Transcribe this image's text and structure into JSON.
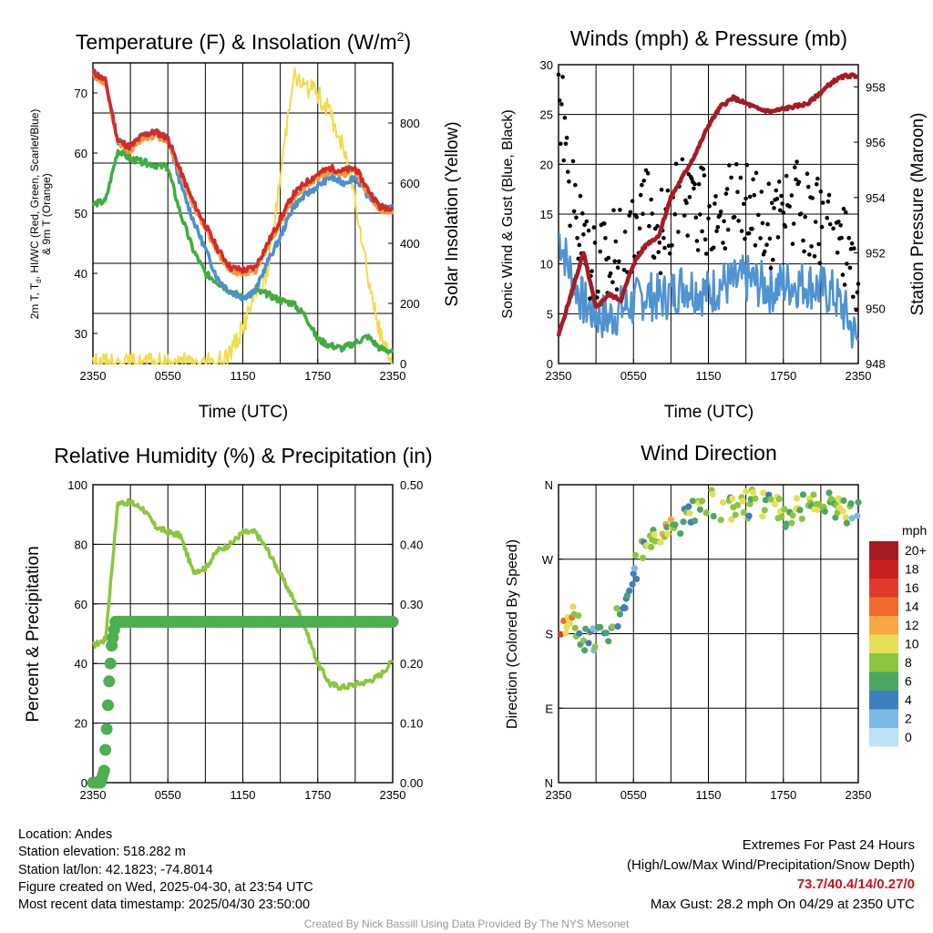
{
  "charts": {
    "temp": {
      "title": "Temperature (F) & Insolation (W/m",
      "title_sup": "2",
      "title_end": ")",
      "xlabel": "Time (UTC)",
      "ylabel_left_lines": [
        "2m T, T",
        "d",
        ", HI/WC (Red, Green, Scarlet/Blue)",
        "& 9m T (Orange)"
      ],
      "ylabel_right": "Solar Insolation (Yellow)",
      "xticks": [
        "2350",
        "0550",
        "1150",
        "1750",
        "2350"
      ],
      "yticks_left": [
        "30",
        "40",
        "50",
        "60",
        "70"
      ],
      "yticks_right": [
        "0",
        "200",
        "400",
        "600",
        "800"
      ]
    },
    "wind": {
      "title": "Winds (mph) & Pressure (mb)",
      "xlabel": "Time (UTC)",
      "ylabel_left": "Sonic Wind & Gust (Blue, Black)",
      "ylabel_right": "Station Pressure (Maroon)",
      "xticks": [
        "2350",
        "0550",
        "1150",
        "1750",
        "2350"
      ],
      "yticks_left": [
        "0",
        "5",
        "10",
        "15",
        "20",
        "25",
        "30"
      ],
      "yticks_right": [
        "948",
        "950",
        "952",
        "954",
        "956",
        "958"
      ]
    },
    "rh": {
      "title": "Relative Humidity (%) & Precipitation (in)",
      "ylabel_left": "Percent & Precipitation",
      "xticks": [
        "2350",
        "0550",
        "1150",
        "1750",
        "2350"
      ],
      "yticks_left": [
        "0",
        "20",
        "40",
        "60",
        "80",
        "100"
      ],
      "yticks_right": [
        "0.00",
        "0.10",
        "0.20",
        "0.30",
        "0.40",
        "0.50"
      ]
    },
    "dir": {
      "title": "Wind Direction",
      "ylabel": "Direction (Colored By Speed)",
      "xticks": [
        "2350",
        "0550",
        "1150",
        "1750",
        "2350"
      ],
      "yticks": [
        "N",
        "E",
        "S",
        "W",
        "N"
      ],
      "colorbar_title": "mph",
      "colorbar_labels": [
        "20+",
        "18",
        "16",
        "14",
        "12",
        "10",
        "8",
        "6",
        "4",
        "2",
        "0"
      ],
      "colorbar_colors": [
        "#a51c24",
        "#c8201f",
        "#e03a2c",
        "#f06a2e",
        "#f9a744",
        "#e6df56",
        "#8cc63f",
        "#4aa864",
        "#3f7fbe",
        "#7cb8e6",
        "#bfe3f6"
      ]
    }
  },
  "chart_data": [
    {
      "type": "line",
      "title": "Temperature (F) & Insolation (W/m2)",
      "xlabel": "Time (UTC)",
      "ylabel": "2m T, Td, HI/WC (Red, Green, Scarlet/Blue) & 9m T (Orange)",
      "y2label": "Solar Insolation (Yellow)",
      "x_hours": [
        0,
        1,
        2,
        3,
        4,
        5,
        6,
        7,
        8,
        9,
        10,
        11,
        12,
        13,
        14,
        15,
        16,
        17,
        18,
        19,
        20,
        21,
        22,
        23,
        24
      ],
      "xlim": [
        0,
        24
      ],
      "ylim": [
        25,
        75
      ],
      "y2lim": [
        0,
        1000
      ],
      "series": [
        {
          "name": "2m T",
          "color": "#d42a2a",
          "axis": "left",
          "values": [
            73.5,
            72,
            62,
            61,
            63,
            63.5,
            62.5,
            57,
            52,
            48,
            44,
            41,
            40.5,
            41,
            45,
            49,
            53,
            55,
            56.5,
            57.5,
            57,
            57.5,
            54,
            51,
            51
          ]
        },
        {
          "name": "9m T",
          "color": "#f39a3c",
          "axis": "left",
          "values": [
            73,
            71.5,
            61.5,
            60.5,
            62.5,
            63,
            62,
            56.5,
            51.5,
            47.5,
            43.5,
            40.5,
            40,
            40.5,
            44.5,
            48.5,
            52.5,
            54.5,
            56,
            57,
            56.5,
            57,
            53.5,
            50.5,
            50.5
          ]
        },
        {
          "name": "HI/WC",
          "color": "#4a90d0",
          "axis": "left",
          "values": [
            73.5,
            72,
            62,
            61,
            63,
            63.5,
            62.5,
            55,
            49,
            44,
            39,
            37,
            36,
            37,
            42,
            46,
            51,
            53,
            54.5,
            56,
            55,
            56,
            53,
            51,
            51
          ]
        },
        {
          "name": "Td",
          "color": "#3fae3f",
          "axis": "left",
          "values": [
            51.5,
            52,
            60.5,
            59,
            58.5,
            58,
            57.5,
            50,
            44,
            40,
            38.5,
            37,
            36,
            37,
            36.5,
            35.5,
            35,
            33,
            29,
            28,
            27.5,
            28.5,
            29.5,
            27.5,
            27
          ]
        },
        {
          "name": "Solar Insolation",
          "color": "#f2dc4a",
          "axis": "right",
          "values": [
            0,
            0,
            0,
            0,
            0,
            0,
            0,
            0,
            0,
            0,
            0,
            40,
            120,
            230,
            300,
            620,
            960,
            920,
            900,
            830,
            720,
            560,
            300,
            90,
            5
          ]
        }
      ]
    },
    {
      "type": "line",
      "title": "Winds (mph) & Pressure (mb)",
      "xlabel": "Time (UTC)",
      "ylabel": "Sonic Wind & Gust (Blue, Black)",
      "y2label": "Station Pressure (Maroon)",
      "x_hours": [
        0,
        1,
        2,
        3,
        4,
        5,
        6,
        7,
        8,
        9,
        10,
        11,
        12,
        13,
        14,
        15,
        16,
        17,
        18,
        19,
        20,
        21,
        22,
        23,
        24
      ],
      "xlim": [
        0,
        24
      ],
      "ylim": [
        0,
        30
      ],
      "y2lim": [
        948,
        958.8
      ],
      "series": [
        {
          "name": "Sonic Wind",
          "color": "#4e93d2",
          "axis": "left",
          "values": [
            13,
            9,
            6,
            5,
            4.5,
            5.5,
            6,
            7,
            6.5,
            7,
            8,
            7.5,
            7,
            8,
            8,
            8.5,
            8,
            7.5,
            8,
            8,
            8,
            7.5,
            7,
            5,
            2
          ]
        },
        {
          "name": "Gust",
          "color": "#000000",
          "axis": "left",
          "values": [
            28.2,
            17,
            11,
            10,
            11,
            12,
            13,
            15,
            13,
            15,
            17,
            16,
            15,
            16,
            16,
            15.5,
            15,
            14,
            15,
            16,
            14.5,
            14,
            14,
            11,
            7
          ]
        },
        {
          "name": "Station Pressure",
          "color": "#a51c24",
          "axis": "right",
          "values": [
            949,
            950.5,
            952,
            950,
            950.5,
            950.3,
            951.6,
            952.3,
            952.6,
            954,
            954.8,
            955.6,
            956.6,
            957.3,
            957.6,
            957.4,
            957.2,
            957.1,
            957.2,
            957.3,
            957.4,
            957.8,
            958.2,
            958.4,
            958.4
          ]
        }
      ]
    },
    {
      "type": "line",
      "title": "Relative Humidity (%) & Precipitation (in)",
      "ylabel": "Percent & Precipitation",
      "x_hours": [
        0,
        1,
        2,
        3,
        4,
        5,
        6,
        7,
        8,
        9,
        10,
        11,
        12,
        13,
        14,
        15,
        16,
        17,
        18,
        19,
        20,
        21,
        22,
        23,
        24
      ],
      "xlim": [
        0,
        24
      ],
      "ylim": [
        0,
        100
      ],
      "y2lim": [
        0,
        0.5
      ],
      "series": [
        {
          "name": "Relative Humidity",
          "color": "#8cc63f",
          "axis": "left",
          "values": [
            46,
            48,
            94,
            94,
            92,
            86,
            84,
            83,
            71,
            72,
            78,
            80,
            84,
            84,
            78,
            70,
            62,
            52,
            40,
            33,
            32,
            33,
            34,
            36,
            41
          ]
        },
        {
          "name": "Precipitation",
          "color": "#4caf50",
          "axis": "right",
          "values": [
            0,
            0,
            0.2,
            0.27,
            0.27,
            0.27,
            0.27,
            0.27,
            0.27,
            0.27,
            0.27,
            0.27,
            0.27,
            0.27,
            0.27,
            0.27,
            0.27,
            0.27,
            0.27,
            0.27,
            0.27,
            0.27,
            0.27,
            0.27,
            0.27
          ]
        }
      ]
    },
    {
      "type": "scatter",
      "title": "Wind Direction",
      "ylabel": "Direction (Colored By Speed)",
      "x_hours": [
        0,
        1,
        2,
        3,
        4,
        5,
        6,
        7,
        8,
        9,
        10,
        11,
        12,
        13,
        14,
        15,
        16,
        17,
        18,
        19,
        20,
        21,
        22,
        23,
        24
      ],
      "xlim": [
        0,
        24
      ],
      "ylim": [
        0,
        360
      ],
      "series": [
        {
          "name": "Direction (deg)",
          "values": [
            190,
            200,
            175,
            170,
            185,
            205,
            255,
            285,
            300,
            310,
            320,
            325,
            340,
            330,
            330,
            335,
            340,
            332,
            325,
            330,
            335,
            340,
            337,
            330,
            338
          ]
        },
        {
          "name": "Speed (mph)",
          "values": [
            13,
            12,
            5,
            4,
            5,
            6,
            5,
            8,
            9,
            9,
            7,
            7,
            7,
            8,
            8,
            7,
            8,
            7,
            9,
            8,
            9,
            8,
            8,
            7,
            4
          ]
        }
      ]
    }
  ],
  "footer": {
    "location": "Location: Andes",
    "elevation": "Station elevation: 518.282 m",
    "latlon": "Station lat/lon: 42.1823; -74.8014",
    "created": "Figure created on Wed, 2025-04-30, at 23:54 UTC",
    "recent": "Most recent data timestamp: 2025/04/30 23:50:00",
    "extremes_title": "Extremes For Past 24 Hours",
    "extremes_subtitle": "(High/Low/Max Wind/Precipitation/Snow Depth)",
    "extremes_values": "73.7/40.4/14/0.27/0",
    "max_gust": "Max Gust: 28.2 mph On 04/29 at 2350 UTC",
    "credit": "Created By Nick Bassill Using Data Provided By The NYS Mesonet"
  }
}
